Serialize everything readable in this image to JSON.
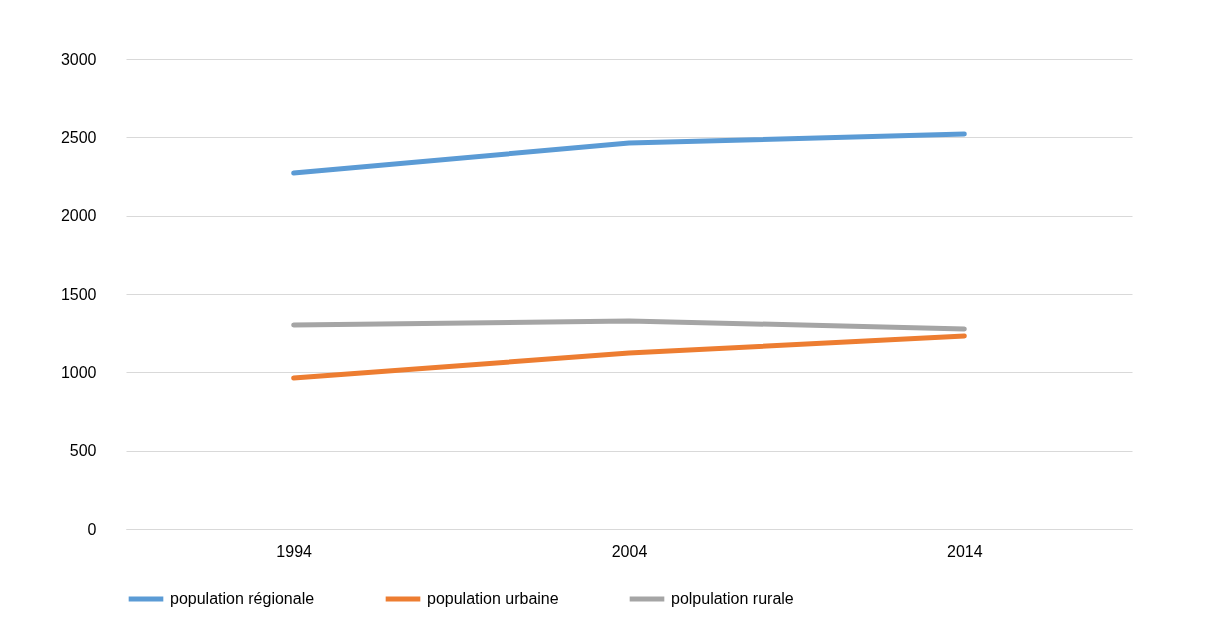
{
  "chart_data": {
    "type": "line",
    "categories": [
      "1994",
      "2004",
      "2014"
    ],
    "series": [
      {
        "name": "population régionale",
        "color": "#5b9bd5",
        "values": [
          2272,
          2464,
          2521
        ]
      },
      {
        "name": "population urbaine",
        "color": "#ed7d31",
        "values": [
          964,
          1123,
          1232
        ]
      },
      {
        "name": "polpulation rurale",
        "color": "#a5a5a5",
        "values": [
          1302,
          1328,
          1277
        ]
      }
    ],
    "ylim": [
      0,
      3000
    ],
    "yticks": [
      0,
      500,
      1000,
      1500,
      2000,
      2500,
      3000
    ],
    "grid": "y",
    "legend": "bottom",
    "marker": "none",
    "line_style": "solid"
  }
}
